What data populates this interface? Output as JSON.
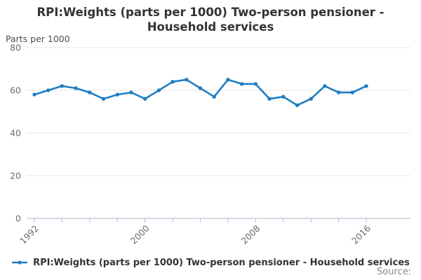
{
  "title_lines": [
    "RPI:Weights (parts per 1000) Two-person pensioner -",
    "Household services"
  ],
  "unit_label": "Parts per 1000",
  "legend": {
    "label": "RPI:Weights (parts per 1000) Two-person pensioner - Household services"
  },
  "source_label": "Source:",
  "colors": {
    "series": "#1f7ec2",
    "grid": "#e4e4e4",
    "axis": "#b9c6d3",
    "tick_text": "#6b6b6b",
    "title_text": "#333333",
    "legend_text": "#333333",
    "source_text": "#8a8a8a"
  },
  "chart_data": {
    "type": "line",
    "title": "RPI:Weights (parts per 1000) Two-person pensioner - Household services",
    "xlabel": "",
    "ylabel": "Parts per 1000",
    "x": [
      1992,
      1993,
      1994,
      1995,
      1996,
      1997,
      1998,
      1999,
      2000,
      2001,
      2002,
      2003,
      2004,
      2005,
      2006,
      2007,
      2008,
      2009,
      2010,
      2011,
      2012,
      2013,
      2014,
      2015,
      2016
    ],
    "series": [
      {
        "name": "RPI:Weights (parts per 1000) Two-person pensioner - Household services",
        "values": [
          58,
          60,
          62,
          61,
          59,
          56,
          58,
          59,
          56,
          60,
          64,
          65,
          61,
          57,
          65,
          63,
          63,
          56,
          57,
          53,
          56,
          62,
          59,
          59,
          62
        ]
      }
    ],
    "ylim": [
      0,
      80
    ],
    "yticks": [
      0,
      20,
      40,
      60,
      80
    ],
    "xticks_labeled": [
      1992,
      2000,
      2008,
      2016
    ],
    "xtick_minor_step": 2,
    "grid": "horizontal",
    "markers": true,
    "legend_position": "bottom"
  }
}
